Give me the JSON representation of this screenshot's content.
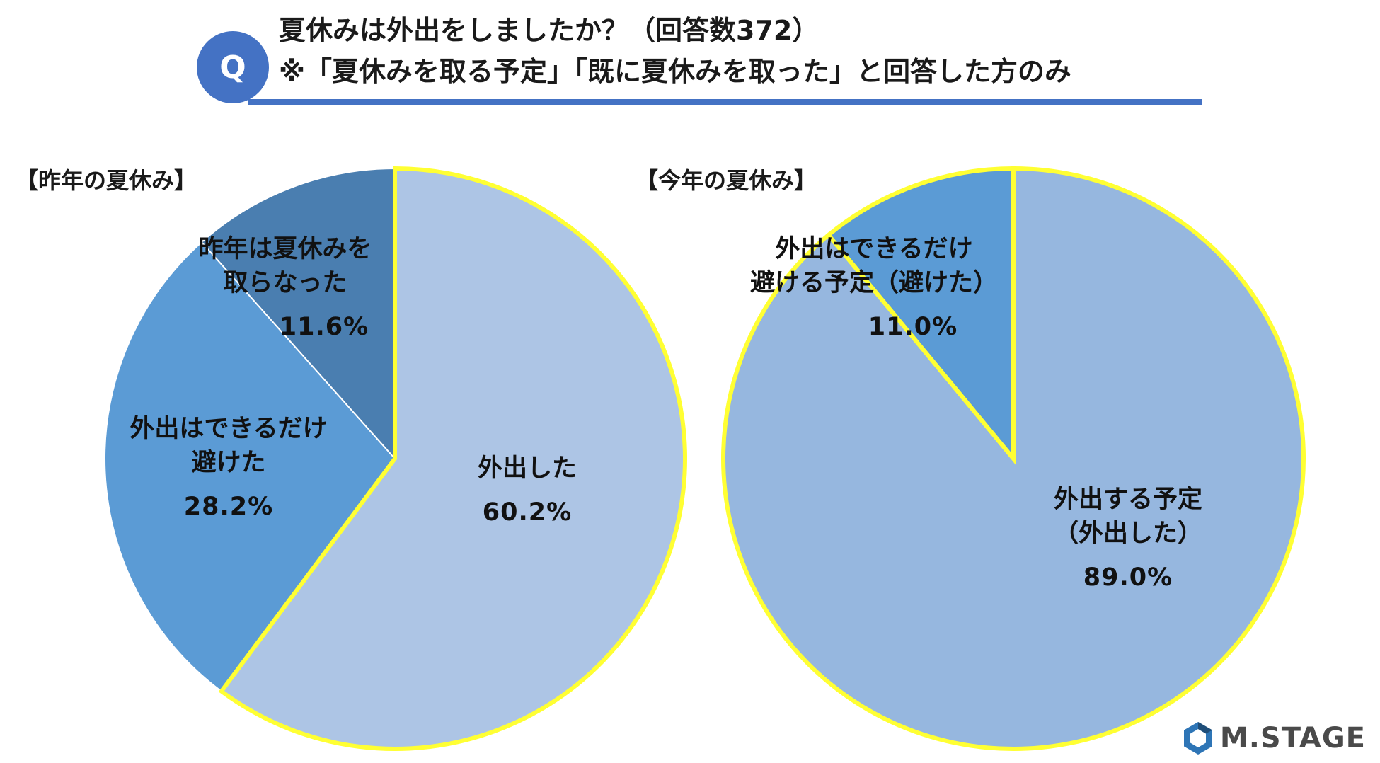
{
  "question": {
    "badge": "Q",
    "line1": "夏休みは外出をしましたか？（回答数372）",
    "line2": "※「夏休みを取る予定」「既に夏休みを取った」と回答した方のみ"
  },
  "logo": {
    "text": "M.STAGE",
    "icon": "hexagon-logo-icon"
  },
  "colors": {
    "accent": "#4472c4",
    "highlight_border": "#ffff33"
  },
  "chart_data": [
    {
      "type": "pie",
      "title": "【昨年の夏休み】",
      "slices": [
        {
          "label_lines": [
            "外出した"
          ],
          "value": 60.2,
          "value_label": "60.2%",
          "color": "#adc5e5",
          "highlighted": true
        },
        {
          "label_lines": [
            "外出はできるだけ",
            "避けた"
          ],
          "value": 28.2,
          "value_label": "28.2%",
          "color": "#5b9bd5",
          "highlighted": false
        },
        {
          "label_lines": [
            "昨年は夏休みを",
            "取らなった"
          ],
          "value": 11.6,
          "value_label": "11.6%",
          "color": "#4a7eb0",
          "highlighted": false
        }
      ]
    },
    {
      "type": "pie",
      "title": "【今年の夏休み】",
      "slices": [
        {
          "label_lines": [
            "外出する予定",
            "（外出した）"
          ],
          "value": 89.0,
          "value_label": "89.0%",
          "color": "#96b7df",
          "highlighted": true
        },
        {
          "label_lines": [
            "外出はできるだけ",
            "避ける予定（避けた）"
          ],
          "value": 11.0,
          "value_label": "11.0%",
          "color": "#5b9bd5",
          "highlighted": true
        }
      ]
    }
  ]
}
